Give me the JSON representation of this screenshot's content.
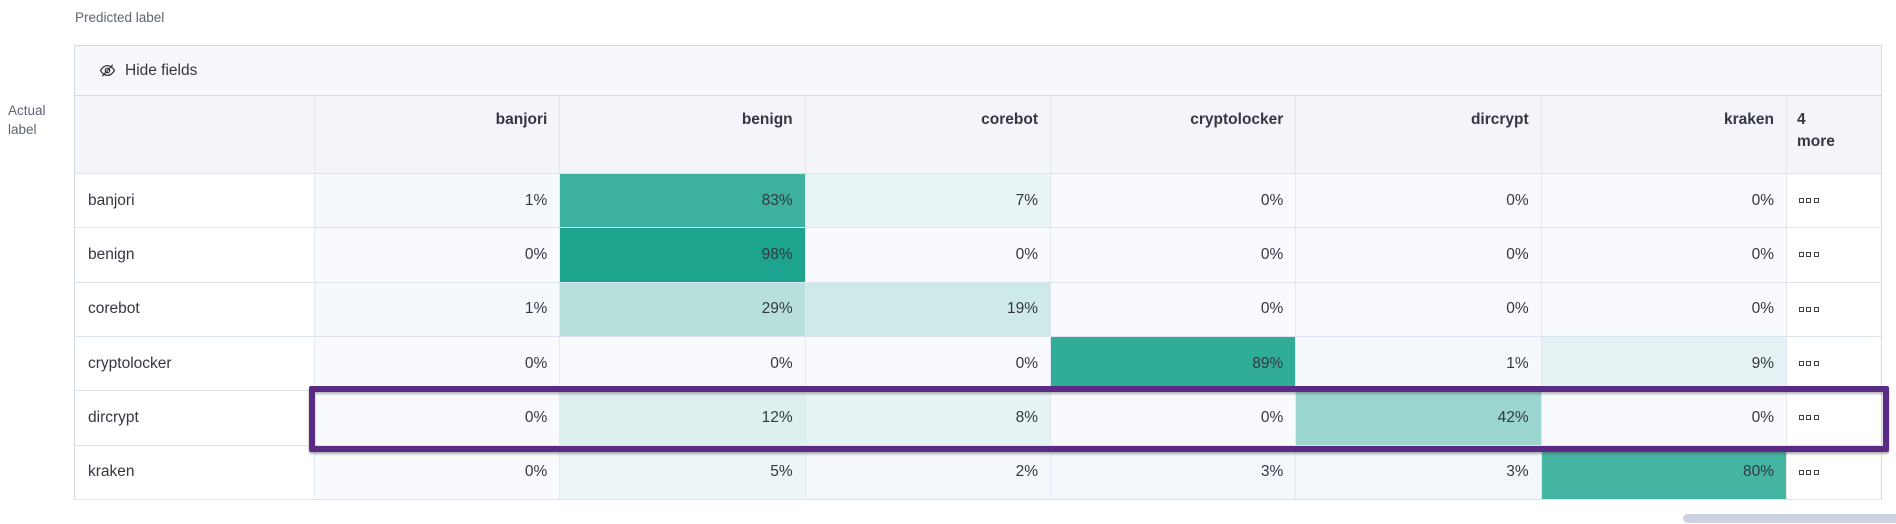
{
  "axis": {
    "predicted_label": "Predicted label",
    "actual_line1": "Actual",
    "actual_line2": "label"
  },
  "toolbar": {
    "hide_fields_label": "Hide fields",
    "hide_fields_icon": "eye-closed-icon"
  },
  "table": {
    "more_column_header": "4 more",
    "more_cell_icon": "boxes-horizontal-icon",
    "value_suffix": "%"
  },
  "colors": {
    "heatmap_base": "#17A28C",
    "value_cell_background": "#F8FAFD",
    "header_background": "#F3F5FA",
    "toolbar_background": "#F6F8FC",
    "grid_border": "#E2E7F1",
    "outer_border": "#D3DAE6",
    "highlight_border": "#5A2B84",
    "text_primary": "#343741",
    "text_secondary": "#5D6471",
    "scrollbar": "#CCD3E0"
  },
  "chart_data": {
    "type": "heatmap",
    "x_axis_title": "Predicted label",
    "y_axis_title": "Actual label",
    "columns": [
      "banjori",
      "benign",
      "corebot",
      "cryptolocker",
      "dircrypt",
      "kraken"
    ],
    "extra_columns_label": "4 more",
    "rows": [
      "banjori",
      "benign",
      "corebot",
      "cryptolocker",
      "dircrypt",
      "kraken"
    ],
    "values_percent": [
      [
        1,
        83,
        7,
        0,
        0,
        0
      ],
      [
        0,
        98,
        0,
        0,
        0,
        0
      ],
      [
        1,
        29,
        19,
        0,
        0,
        0
      ],
      [
        0,
        0,
        0,
        89,
        1,
        9
      ],
      [
        0,
        12,
        8,
        0,
        42,
        0
      ],
      [
        0,
        5,
        2,
        3,
        3,
        80
      ]
    ],
    "value_format": "percent",
    "highlighted_row": "dircrypt",
    "legend": "none",
    "color_scale": [
      "#F8FAFD",
      "#17A28C"
    ]
  }
}
